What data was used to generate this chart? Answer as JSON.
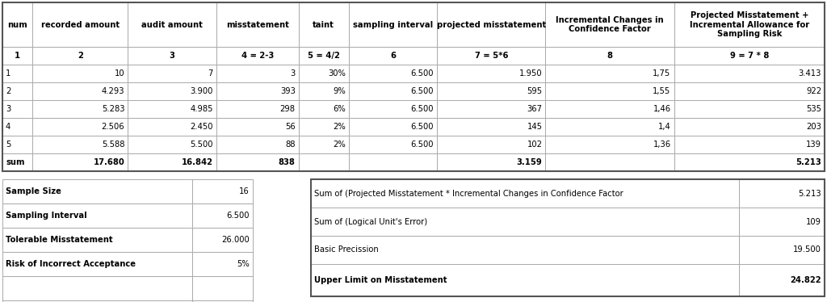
{
  "header_row1": [
    "num",
    "recorded amount",
    "audit amount",
    "misstatement",
    "taint",
    "sampling interval",
    "projected misstatement",
    "Incremental Changes in\nConfidence Factor",
    "Projected Misstatement +\nIncremental Allowance for\nSampling Risk"
  ],
  "header_row2": [
    "1",
    "2",
    "3",
    "4 = 2-3",
    "5 = 4/2",
    "6",
    "7 = 5*6",
    "8",
    "9 = 7 * 8"
  ],
  "data_rows": [
    [
      "1",
      "10",
      "7",
      "3",
      "30%",
      "6.500",
      "1.950",
      "1,75",
      "3.413"
    ],
    [
      "2",
      "4.293",
      "3.900",
      "393",
      "9%",
      "6.500",
      "595",
      "1,55",
      "922"
    ],
    [
      "3",
      "5.283",
      "4.985",
      "298",
      "6%",
      "6.500",
      "367",
      "1,46",
      "535"
    ],
    [
      "4",
      "2.506",
      "2.450",
      "56",
      "2%",
      "6.500",
      "145",
      "1,4",
      "203"
    ],
    [
      "5",
      "5.588",
      "5.500",
      "88",
      "2%",
      "6.500",
      "102",
      "1,36",
      "139"
    ]
  ],
  "sum_row": [
    "sum",
    "17.680",
    "16.842",
    "838",
    "",
    "",
    "3.159",
    "",
    "5.213"
  ],
  "col_aligns": [
    "left",
    "right",
    "right",
    "right",
    "right",
    "right",
    "right",
    "right",
    "right"
  ],
  "summary_left": [
    [
      "Sample Size",
      "16"
    ],
    [
      "Sampling Interval",
      "6.500"
    ],
    [
      "Tolerable Misstatement",
      "26.000"
    ],
    [
      "Risk of Incorrect Acceptance",
      "5%"
    ]
  ],
  "summary_right": [
    [
      "Sum of (Projected Misstatement * Incremental Changes in Confidence Factor",
      "5.213"
    ],
    [
      "Sum of (Logical Unit's Error)",
      "109"
    ],
    [
      "Basic Precission",
      "19.500"
    ],
    [
      "Upper Limit on Misstatement",
      "24.822"
    ]
  ],
  "grid_color": "#aaaaaa",
  "thick_color": "#555555",
  "font_size": 7.2,
  "font_size_bold": 7.2
}
